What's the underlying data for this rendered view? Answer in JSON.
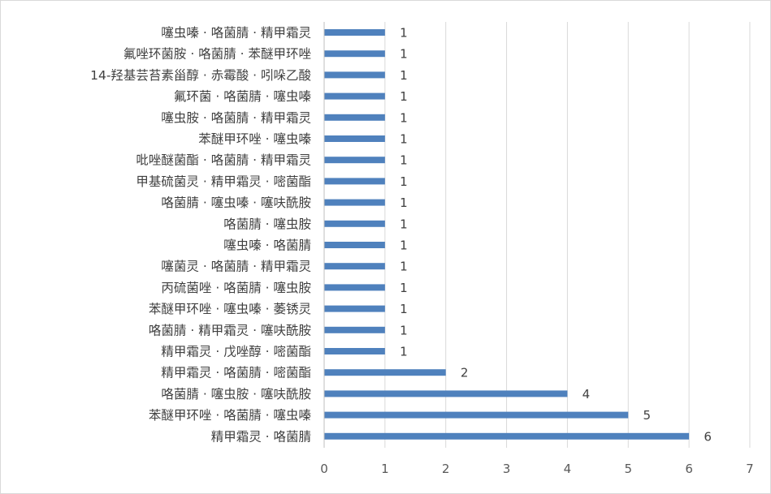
{
  "chart_data": {
    "type": "bar",
    "orientation": "horizontal",
    "title": "",
    "xlabel": "",
    "ylabel": "",
    "xlim": [
      0,
      7
    ],
    "x_ticks": [
      0,
      1,
      2,
      3,
      4,
      5,
      6,
      7
    ],
    "grid": "vertical",
    "legend": "none",
    "bar_color": "#4f81bd",
    "categories": [
      "噻虫嗪 · 咯菌腈 · 精甲霜灵",
      "氟唑环菌胺 · 咯菌腈 · 苯醚甲环唑",
      "14-羟基芸苔素甾醇 · 赤霉酸 · 吲哚乙酸",
      "氟环菌 · 咯菌腈 · 噻虫嗪",
      "噻虫胺 · 咯菌腈 · 精甲霜灵",
      "苯醚甲环唑 · 噻虫嗪",
      "吡唑醚菌酯 · 咯菌腈 · 精甲霜灵",
      "甲基硫菌灵 · 精甲霜灵 · 嘧菌酯",
      "咯菌腈 · 噻虫嗪 · 噻呋酰胺",
      "咯菌腈 · 噻虫胺",
      "噻虫嗪 · 咯菌腈",
      "噻菌灵 · 咯菌腈 · 精甲霜灵",
      "丙硫菌唑 · 咯菌腈 · 噻虫胺",
      "苯醚甲环唑 · 噻虫嗪 · 萎锈灵",
      "咯菌腈 · 精甲霜灵 · 噻呋酰胺",
      "精甲霜灵 · 戊唑醇 · 嘧菌酯",
      "精甲霜灵 · 咯菌腈 · 嘧菌酯",
      "咯菌腈 · 噻虫胺 · 噻呋酰胺",
      "苯醚甲环唑 · 咯菌腈 · 噻虫嗪",
      "精甲霜灵 · 咯菌腈"
    ],
    "values": [
      1,
      1,
      1,
      1,
      1,
      1,
      1,
      1,
      1,
      1,
      1,
      1,
      1,
      1,
      1,
      1,
      2,
      4,
      5,
      6
    ]
  }
}
